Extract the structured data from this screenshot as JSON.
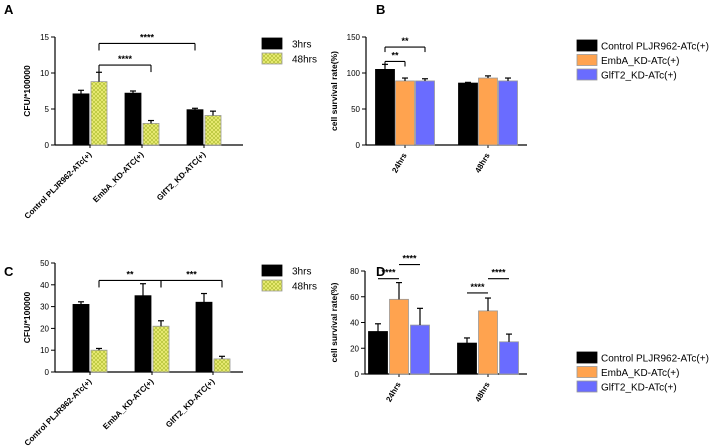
{
  "colors": {
    "black": "#000000",
    "hatch_fill": "#f0f07a",
    "hatch_line": "#b7c43c",
    "orange": "#ffa34f",
    "blue": "#6a6cff"
  },
  "chart_data": [
    {
      "panel": "A",
      "type": "bar",
      "ylabel": "CFU/*100000",
      "ylim": [
        0,
        15
      ],
      "yticks": [
        0,
        5,
        10,
        15
      ],
      "categories": [
        "Control PLJR962-ATc(+)",
        "EmbA_KD-ATC(+)",
        "GlfT2_KD-ATC(+)"
      ],
      "series": [
        {
          "name": "3hrs",
          "style": "black",
          "values": [
            7.1,
            7.2,
            4.9
          ],
          "errors": [
            0.5,
            0.3,
            0.2
          ]
        },
        {
          "name": "48hrs",
          "style": "hatch",
          "values": [
            8.8,
            3.0,
            4.1
          ],
          "errors": [
            1.3,
            0.4,
            0.6
          ]
        }
      ],
      "significance": [
        {
          "label": "****",
          "from": [
            0,
            1
          ],
          "to": [
            1,
            1
          ],
          "y": 11.1
        },
        {
          "label": "****",
          "from": [
            0,
            1
          ],
          "to": [
            2,
            0
          ],
          "y": 14.1
        }
      ],
      "legend_position": "right"
    },
    {
      "panel": "B",
      "type": "bar",
      "ylabel": "cell survival rate(%)",
      "ylim": [
        0,
        150
      ],
      "yticks": [
        0,
        50,
        100,
        150
      ],
      "categories": [
        "24hrs",
        "48hrs"
      ],
      "series": [
        {
          "name": "Control PLJR962-ATc(+)",
          "style": "black",
          "values": [
            105,
            86
          ],
          "errors": [
            7,
            1
          ]
        },
        {
          "name": "EmbA_KD-ATc(+)",
          "style": "orange",
          "values": [
            89,
            93
          ],
          "errors": [
            4,
            3
          ]
        },
        {
          "name": "GlfT2_KD-ATc(+)",
          "style": "blue",
          "values": [
            89,
            89
          ],
          "errors": [
            3,
            4
          ]
        }
      ],
      "significance": [
        {
          "label": "**",
          "from": [
            0,
            0
          ],
          "to": [
            0,
            1
          ],
          "y": 116
        },
        {
          "label": "**",
          "from": [
            0,
            0
          ],
          "to": [
            0,
            2
          ],
          "y": 136
        }
      ],
      "legend_position": "right"
    },
    {
      "panel": "C",
      "type": "bar",
      "ylabel": "CFU/*100000",
      "ylim": [
        0,
        50
      ],
      "yticks": [
        0,
        10,
        20,
        30,
        40,
        50
      ],
      "categories": [
        "Control PLJR962-ATc(+)",
        "EmbA_KD-ATC(+)",
        "GlfT2_KD-ATC(+)"
      ],
      "series": [
        {
          "name": "3hrs",
          "style": "black",
          "values": [
            31,
            35,
            32
          ],
          "errors": [
            1.2,
            5.5,
            4.0
          ]
        },
        {
          "name": "48hrs",
          "style": "hatch",
          "values": [
            10,
            21,
            6
          ],
          "errors": [
            0.8,
            2.5,
            1.2
          ]
        }
      ],
      "significance": [
        {
          "label": "**",
          "from": [
            0,
            1
          ],
          "to": [
            1,
            1
          ],
          "y": 42
        },
        {
          "label": "***",
          "from": [
            1,
            1
          ],
          "to": [
            2,
            1
          ],
          "y": 42
        }
      ],
      "legend_position": "right"
    },
    {
      "panel": "D",
      "type": "bar",
      "ylabel": "cell survival rate(%)",
      "ylim": [
        0,
        80
      ],
      "yticks": [
        0,
        20,
        40,
        60,
        80
      ],
      "categories": [
        "24hrs",
        "48hrs"
      ],
      "series": [
        {
          "name": "Control PLJR962-ATc(+)",
          "style": "black",
          "values": [
            33,
            24
          ],
          "errors": [
            6,
            4
          ]
        },
        {
          "name": "EmbA_KD-ATc(+)",
          "style": "orange",
          "values": [
            58,
            49
          ],
          "errors": [
            13,
            10
          ]
        },
        {
          "name": "GlfT2_KD-ATc(+)",
          "style": "blue",
          "values": [
            38,
            25
          ],
          "errors": [
            13,
            6
          ]
        }
      ],
      "significance": [
        {
          "label": "****",
          "from": [
            0,
            0
          ],
          "to": [
            0,
            1
          ],
          "y": 74
        },
        {
          "label": "****",
          "from": [
            0,
            1
          ],
          "to": [
            0,
            2
          ],
          "y": 85
        },
        {
          "label": "****",
          "from": [
            1,
            0
          ],
          "to": [
            1,
            1
          ],
          "y": 63
        },
        {
          "label": "****",
          "from": [
            1,
            1
          ],
          "to": [
            1,
            2
          ],
          "y": 74
        }
      ],
      "legend_position": "right"
    }
  ]
}
